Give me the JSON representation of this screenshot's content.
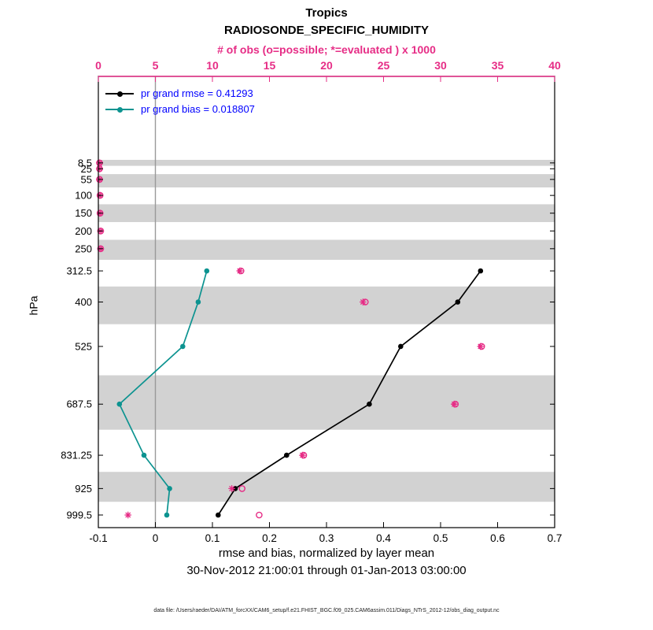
{
  "titles": {
    "region": "Tropics",
    "variable": "RADIOSONDE_SPECIFIC_HUMIDITY",
    "obs_axis_label": "# of obs (o=possible; *=evaluated ) x 1000"
  },
  "legend": {
    "rmse_label": "pr grand rmse = 0.41293",
    "bias_label": "pr grand bias = 0.018807"
  },
  "axes": {
    "y_label": "hPa",
    "x_label": "rmse and bias, normalized by layer mean",
    "date_range": "30-Nov-2012 21:00:01 through 01-Jan-2013 03:00:00"
  },
  "footer": {
    "data_file": "data file: /Users/raeder/DAI/ATM_forcXX/CAM6_setup/f.e21.FHIST_BGC.f09_025.CAM6assim.011/Diags_NTrS_2012-12/obs_diag_output.nc"
  },
  "colors": {
    "rmse": "#000000",
    "bias": "#0c9390",
    "obs": "#e62d86",
    "band_gray": "#d2d2d2",
    "zero_line": "#9a9a9a",
    "legend_text_blue": "#0000ff"
  },
  "chart_data": {
    "type": "line",
    "title": "Tropics - RADIOSONDE_SPECIFIC_HUMIDITY",
    "xlabel": "rmse and bias, normalized by layer mean",
    "ylabel": "hPa",
    "grid": false,
    "legend_position": "top-left-inside",
    "y_axis": {
      "label": "hPa",
      "range": [
        -235,
        1035
      ],
      "direction": "increasing-downward",
      "tick_levels": [
        8.5,
        25,
        55,
        100,
        150,
        200,
        250,
        312.5,
        400,
        525,
        687.5,
        831.25,
        925,
        999.5
      ]
    },
    "x_axis_bottom": {
      "label": "rmse and bias, normalized by layer mean",
      "range": [
        -0.1,
        0.7
      ],
      "ticks": [
        -0.1,
        0,
        0.1,
        0.2,
        0.3,
        0.4,
        0.5,
        0.6,
        0.7
      ]
    },
    "x_axis_top": {
      "label": "# of obs (o=possible; *=evaluated ) x 1000",
      "range": [
        0,
        40
      ],
      "ticks": [
        0,
        5,
        10,
        15,
        20,
        25,
        30,
        35,
        40
      ]
    },
    "series": [
      {
        "name": "pr grand rmse",
        "key": "rmse",
        "grand_value": 0.41293,
        "color": "#000000",
        "levels_hpa": [
          312.5,
          400,
          525,
          687.5,
          831.25,
          925,
          999.5
        ],
        "values": [
          0.57,
          0.53,
          0.43,
          0.375,
          0.23,
          0.14,
          0.11
        ]
      },
      {
        "name": "pr grand bias",
        "key": "bias",
        "grand_value": 0.018807,
        "color": "#0c9390",
        "levels_hpa": [
          312.5,
          400,
          525,
          687.5,
          831.25,
          925,
          999.5
        ],
        "values": [
          0.09,
          0.075,
          0.048,
          -0.063,
          -0.02,
          0.025,
          0.02
        ]
      }
    ],
    "obs_counts_x1000": {
      "levels_hpa": [
        8.5,
        25,
        55,
        100,
        150,
        200,
        250,
        312.5,
        400,
        525,
        687.5,
        831.25,
        925,
        999.5
      ],
      "possible": [
        0.1,
        0.1,
        0.1,
        0.15,
        0.15,
        0.2,
        0.2,
        12.5,
        23.4,
        33.6,
        31.3,
        18.0,
        12.6,
        14.1
      ],
      "evaluated": [
        0.1,
        0.1,
        0.1,
        0.15,
        0.15,
        0.2,
        0.2,
        12.4,
        23.2,
        33.5,
        31.2,
        17.9,
        11.7,
        2.6
      ]
    },
    "shaded_bands_hpa": [
      [
        0,
        16.75
      ],
      [
        40,
        77.5
      ],
      [
        125,
        175
      ],
      [
        225,
        281.25
      ],
      [
        356.25,
        462.5
      ],
      [
        606.25,
        759.375
      ],
      [
        878.125,
        962.25
      ]
    ],
    "zero_line_x": 0
  }
}
